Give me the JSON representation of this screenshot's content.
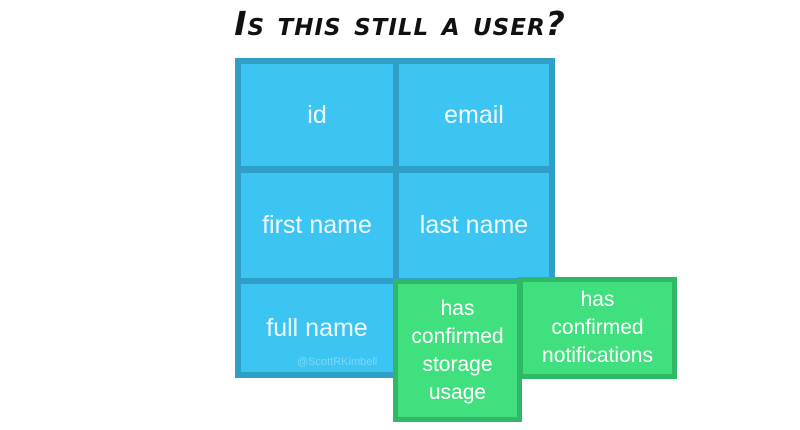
{
  "title": "Is this still a user?",
  "user_fields": {
    "id": "id",
    "email": "email",
    "first_name": "first name",
    "last_name": "last name",
    "full_name": "full name"
  },
  "added_fields": {
    "storage_usage": [
      "has",
      "confirmed",
      "storage",
      "usage"
    ],
    "notifications": [
      "has",
      "confirmed",
      "notifications"
    ]
  },
  "watermark": "@ScottRKimbell",
  "colors": {
    "user_cell": "#3cc4f2",
    "user_border": "#2f9fc9",
    "added_fill": "#41e07e",
    "added_border": "#2fb866"
  }
}
